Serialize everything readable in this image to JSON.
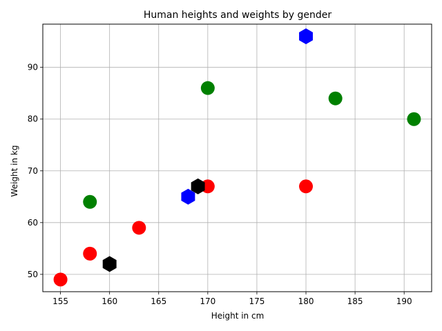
{
  "chart_data": {
    "type": "scatter",
    "title": "Human heights and weights by gender",
    "xlabel": "Height in cm",
    "ylabel": "Weight in kg",
    "xlim": [
      153.2,
      192.8
    ],
    "ylim": [
      46.65,
      98.35
    ],
    "xticks": [
      155,
      160,
      165,
      170,
      175,
      180,
      185,
      190
    ],
    "yticks": [
      50,
      60,
      70,
      80,
      90
    ],
    "grid": true,
    "points": [
      {
        "x": 155,
        "y": 49,
        "color": "#ff0000",
        "marker": "circle"
      },
      {
        "x": 158,
        "y": 54,
        "color": "#ff0000",
        "marker": "circle"
      },
      {
        "x": 163,
        "y": 59,
        "color": "#ff0000",
        "marker": "circle"
      },
      {
        "x": 170,
        "y": 67,
        "color": "#ff0000",
        "marker": "circle"
      },
      {
        "x": 180,
        "y": 67,
        "color": "#ff0000",
        "marker": "circle"
      },
      {
        "x": 158,
        "y": 64,
        "color": "#008000",
        "marker": "circle"
      },
      {
        "x": 170,
        "y": 86,
        "color": "#008000",
        "marker": "circle"
      },
      {
        "x": 183,
        "y": 84,
        "color": "#008000",
        "marker": "circle"
      },
      {
        "x": 191,
        "y": 80,
        "color": "#008000",
        "marker": "circle"
      },
      {
        "x": 168,
        "y": 65,
        "color": "#0000ff",
        "marker": "hexagon"
      },
      {
        "x": 180,
        "y": 96,
        "color": "#0000ff",
        "marker": "hexagon"
      },
      {
        "x": 160,
        "y": 52,
        "color": "#000000",
        "marker": "hexagon"
      },
      {
        "x": 169,
        "y": 67,
        "color": "#000000",
        "marker": "hexagon"
      }
    ]
  }
}
